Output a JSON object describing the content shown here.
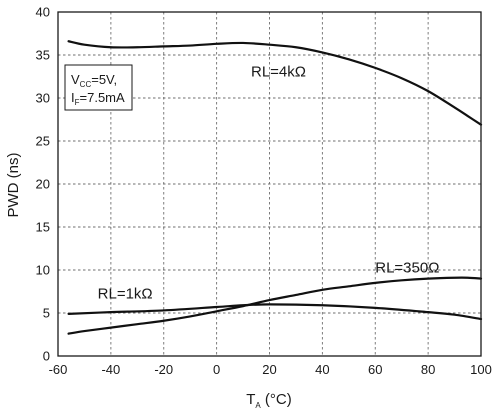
{
  "chart_data": {
    "type": "line",
    "title": "",
    "xlabel": {
      "main": "T",
      "sub": "A",
      "unit": " (°C)"
    },
    "ylabel": "PWD (ns)",
    "xlim": [
      -60,
      100
    ],
    "ylim": [
      0,
      40
    ],
    "x_ticks": [
      -60,
      -40,
      -20,
      0,
      20,
      40,
      60,
      80,
      100
    ],
    "y_ticks": [
      0,
      5,
      10,
      15,
      20,
      25,
      30,
      35,
      40
    ],
    "grid": true,
    "conditions": {
      "line1_main": "V",
      "line1_sub": "CC",
      "line1_rest": "=5V,",
      "line2_main": "I",
      "line2_sub": "F",
      "line2_rest": "=7.5mA"
    },
    "series": [
      {
        "name": "RL=4kΩ",
        "x": [
          -56,
          -50,
          -40,
          -30,
          -20,
          -10,
          0,
          10,
          20,
          30,
          40,
          50,
          60,
          70,
          80,
          90,
          95,
          100
        ],
        "values": [
          36.6,
          36.2,
          35.9,
          35.9,
          36.0,
          36.1,
          36.3,
          36.4,
          36.2,
          35.9,
          35.3,
          34.5,
          33.5,
          32.3,
          30.8,
          28.9,
          27.9,
          26.9
        ]
      },
      {
        "name": "RL=350Ω",
        "x": [
          -56,
          -50,
          -40,
          -30,
          -20,
          -10,
          0,
          10,
          20,
          30,
          40,
          50,
          60,
          70,
          80,
          90,
          95,
          100
        ],
        "values": [
          2.6,
          2.9,
          3.3,
          3.7,
          4.1,
          4.6,
          5.2,
          5.8,
          6.5,
          7.1,
          7.7,
          8.1,
          8.5,
          8.8,
          9.0,
          9.1,
          9.1,
          9.0
        ]
      },
      {
        "name": "RL=1kΩ",
        "x": [
          -56,
          -40,
          -20,
          0,
          10,
          20,
          40,
          60,
          80,
          90,
          100
        ],
        "values": [
          4.9,
          5.1,
          5.3,
          5.7,
          5.9,
          6.0,
          5.9,
          5.6,
          5.1,
          4.8,
          4.3
        ]
      }
    ],
    "annotations": [
      {
        "series": "RL=4kΩ",
        "text": "RL=4kΩ",
        "x": 13,
        "y": 32.5
      },
      {
        "series": "RL=350Ω",
        "text": "RL=350Ω",
        "x": 60,
        "y": 9.7
      },
      {
        "series": "RL=1kΩ",
        "text": "RL=1kΩ",
        "x": -45,
        "y": 6.7
      }
    ]
  }
}
